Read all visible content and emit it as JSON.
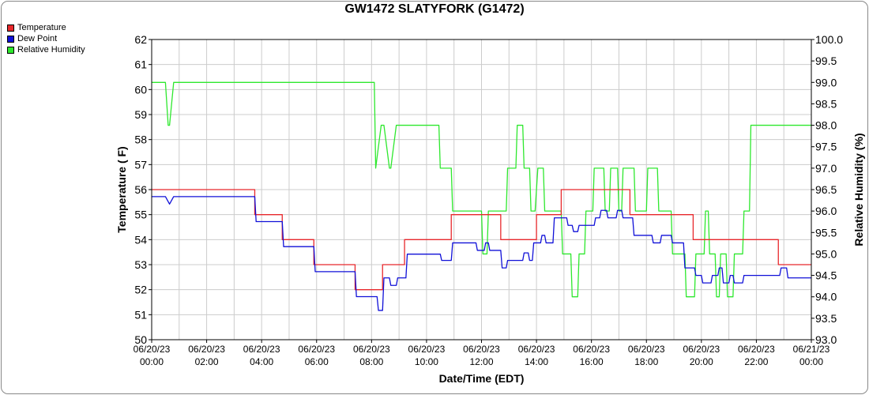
{
  "chart_data": {
    "type": "line",
    "title": "GW1472 SLATYFORK (G1472)",
    "xlabel": "Date/Time (EDT)",
    "ylabel_left": "Temperature ( F)",
    "ylabel_right": "Relative Humidity (%)",
    "y_left_range": [
      50,
      62
    ],
    "y_right_range": [
      93.0,
      100.0
    ],
    "x_range_hours": [
      0,
      24
    ],
    "grid": true,
    "legend_position": "top-left",
    "x_ticks": [
      {
        "date": "06/20/23",
        "time": "00:00"
      },
      {
        "date": "06/20/23",
        "time": "02:00"
      },
      {
        "date": "06/20/23",
        "time": "04:00"
      },
      {
        "date": "06/20/23",
        "time": "06:00"
      },
      {
        "date": "06/20/23",
        "time": "08:00"
      },
      {
        "date": "06/20/23",
        "time": "10:00"
      },
      {
        "date": "06/20/23",
        "time": "12:00"
      },
      {
        "date": "06/20/23",
        "time": "14:00"
      },
      {
        "date": "06/20/23",
        "time": "16:00"
      },
      {
        "date": "06/20/23",
        "time": "18:00"
      },
      {
        "date": "06/20/23",
        "time": "20:00"
      },
      {
        "date": "06/20/23",
        "time": "22:00"
      },
      {
        "date": "06/21/23",
        "time": "00:00"
      }
    ],
    "y_left_ticks": [
      "50",
      "51",
      "52",
      "53",
      "54",
      "55",
      "56",
      "57",
      "58",
      "59",
      "60",
      "61",
      "62"
    ],
    "y_right_ticks": [
      "93.0",
      "93.5",
      "94.0",
      "94.5",
      "95.0",
      "95.5",
      "96.0",
      "96.5",
      "97.0",
      "97.5",
      "98.0",
      "98.5",
      "99.0",
      "99.5",
      "100.0"
    ],
    "series": [
      {
        "name": "Temperature",
        "axis": "left",
        "color": "#e8282c",
        "x": [
          0,
          3.75,
          3.75,
          4.75,
          4.75,
          5.9,
          5.9,
          7.4,
          7.4,
          8.4,
          8.4,
          9.2,
          9.2,
          10.9,
          10.9,
          12.7,
          12.7,
          14.0,
          14.0,
          14.9,
          14.9,
          17.4,
          17.4,
          19.7,
          19.7,
          22.8,
          22.8,
          24
        ],
        "y": [
          56,
          56,
          55,
          55,
          54,
          54,
          53,
          53,
          52,
          52,
          53,
          53,
          54,
          54,
          55,
          55,
          54,
          54,
          55,
          55,
          56,
          56,
          55,
          55,
          54,
          54,
          53,
          53
        ]
      },
      {
        "name": "Dew Point",
        "axis": "left",
        "color": "#1010d8",
        "x": [
          0,
          0.5,
          0.65,
          0.8,
          3.75,
          3.8,
          4.75,
          4.8,
          5.9,
          5.95,
          7.4,
          7.45,
          8.2,
          8.25,
          8.4,
          8.45,
          8.65,
          8.7,
          8.9,
          8.95,
          9.1,
          9.15,
          9.25,
          9.3,
          10.5,
          10.55,
          10.9,
          10.95,
          11.8,
          11.85,
          12.1,
          12.15,
          12.25,
          12.3,
          12.7,
          12.75,
          12.9,
          12.95,
          13.2,
          13.25,
          13.5,
          13.55,
          13.7,
          13.75,
          13.85,
          13.9,
          14.15,
          14.2,
          14.3,
          14.35,
          14.6,
          14.65,
          14.8,
          14.85,
          15.1,
          15.15,
          15.3,
          15.35,
          15.5,
          15.55,
          15.75,
          15.8,
          16.1,
          16.15,
          16.3,
          16.35,
          16.55,
          16.6,
          16.9,
          16.95,
          17.1,
          17.15,
          17.5,
          17.55,
          17.75,
          17.8,
          18.2,
          18.25,
          18.5,
          18.55,
          18.9,
          18.95,
          19.35,
          19.4,
          19.75,
          19.8,
          20.0,
          20.05,
          20.35,
          20.4,
          20.5,
          20.55,
          20.6,
          20.65,
          20.75,
          20.8,
          21.0,
          21.05,
          21.15,
          21.2,
          21.5,
          21.55,
          21.65,
          21.7,
          21.85,
          21.9,
          22.0,
          22.05,
          22.85,
          22.9,
          23.1,
          23.15,
          24
        ],
        "y": [
          55.72,
          55.72,
          55.42,
          55.72,
          55.72,
          54.72,
          54.72,
          53.72,
          53.72,
          52.72,
          52.72,
          51.72,
          51.72,
          51.17,
          51.17,
          52.47,
          52.47,
          52.17,
          52.17,
          52.47,
          52.47,
          52.47,
          52.47,
          53.42,
          53.42,
          53.17,
          53.17,
          53.87,
          53.87,
          53.57,
          53.57,
          53.87,
          53.87,
          53.57,
          53.57,
          52.87,
          52.87,
          53.17,
          53.17,
          53.17,
          53.17,
          53.47,
          53.47,
          53.17,
          53.17,
          53.87,
          53.87,
          54.17,
          54.17,
          53.87,
          53.87,
          54.87,
          54.87,
          54.87,
          54.87,
          54.57,
          54.57,
          54.32,
          54.32,
          54.57,
          54.57,
          54.57,
          54.57,
          54.87,
          54.87,
          55.17,
          55.17,
          54.87,
          54.87,
          55.17,
          55.17,
          54.87,
          54.87,
          54.17,
          54.17,
          54.17,
          54.17,
          53.87,
          53.87,
          54.17,
          54.17,
          53.87,
          53.87,
          52.87,
          52.87,
          52.57,
          52.57,
          52.27,
          52.27,
          52.57,
          52.57,
          52.57,
          52.57,
          52.87,
          52.87,
          52.27,
          52.27,
          52.57,
          52.57,
          52.27,
          52.27,
          52.57,
          52.57,
          52.57,
          52.57,
          52.57,
          52.57,
          52.57,
          52.57,
          52.87,
          52.87,
          52.47,
          52.47
        ]
      },
      {
        "name": "Relative Humidity",
        "axis": "right",
        "color": "#2ee82e",
        "x": [
          0,
          0.5,
          0.6,
          0.65,
          0.8,
          8.1,
          8.15,
          8.35,
          8.45,
          8.65,
          8.7,
          8.9,
          8.95,
          10.45,
          10.5,
          10.9,
          10.95,
          12.0,
          12.05,
          12.2,
          12.25,
          12.9,
          12.95,
          13.25,
          13.3,
          13.5,
          13.55,
          13.75,
          13.8,
          13.95,
          14.05,
          14.25,
          14.3,
          14.45,
          14.65,
          14.7,
          14.9,
          14.95,
          15.25,
          15.3,
          15.5,
          15.55,
          15.75,
          15.8,
          16.05,
          16.1,
          16.45,
          16.5,
          16.65,
          16.7,
          16.95,
          17.0,
          17.1,
          17.15,
          17.55,
          17.6,
          18.0,
          18.05,
          18.4,
          18.45,
          18.65,
          18.7,
          18.9,
          18.95,
          19.4,
          19.45,
          19.75,
          19.8,
          20.1,
          20.15,
          20.25,
          20.3,
          20.5,
          20.55,
          20.65,
          20.7,
          20.9,
          20.95,
          21.15,
          21.2,
          21.3,
          21.35,
          21.5,
          21.55,
          21.75,
          21.8,
          22.85,
          22.9,
          23.1,
          23.15,
          24
        ],
        "y": [
          99.0,
          99.0,
          98.0,
          98.0,
          99.0,
          99.0,
          97.0,
          98.0,
          98.0,
          97.0,
          97.0,
          98.0,
          98.0,
          98.0,
          97.0,
          97.0,
          96.0,
          96.0,
          95.0,
          95.0,
          96.0,
          96.0,
          97.0,
          97.0,
          98.0,
          98.0,
          97.0,
          97.0,
          96.0,
          96.0,
          97.0,
          97.0,
          96.0,
          96.0,
          96.0,
          96.0,
          96.0,
          95.0,
          95.0,
          94.0,
          94.0,
          95.0,
          95.0,
          96.0,
          96.0,
          97.0,
          97.0,
          96.0,
          96.0,
          97.0,
          97.0,
          96.0,
          96.0,
          97.0,
          97.0,
          96.0,
          96.0,
          97.0,
          97.0,
          96.0,
          96.0,
          96.0,
          96.0,
          95.0,
          95.0,
          94.0,
          94.0,
          95.0,
          95.0,
          96.0,
          96.0,
          95.0,
          95.0,
          94.0,
          94.0,
          95.0,
          95.0,
          94.0,
          94.0,
          95.0,
          95.0,
          95.0,
          95.0,
          96.0,
          96.0,
          98.0,
          98.0,
          98.0,
          98.0,
          98.0,
          98.0
        ]
      }
    ]
  }
}
